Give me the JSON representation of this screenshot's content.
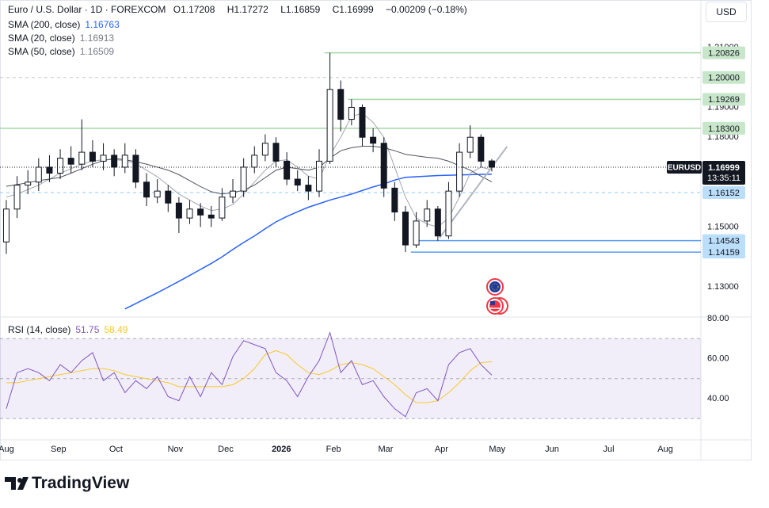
{
  "chart_data": [
    {
      "type": "candlestick",
      "title": "Euro / U.S. Dollar · 1D · FOREXCOM",
      "symbol": "EURUSD",
      "currency": "USD",
      "brand": "TradingView",
      "countdown": "13:35:11",
      "ohlc_labels": [
        "O",
        "H",
        "L",
        "C"
      ],
      "change": "−0.00209 (−0.18%)",
      "x": [
        0,
        6,
        12,
        18,
        24,
        30,
        36,
        42,
        48,
        54,
        60,
        66,
        72,
        78,
        84,
        90,
        96,
        102,
        108,
        114,
        120,
        126,
        132,
        138,
        144,
        150,
        156,
        162,
        168,
        174,
        180,
        186,
        192,
        198,
        204,
        210,
        216,
        222,
        228,
        234,
        240,
        246,
        252,
        258,
        264,
        270
      ],
      "open": [
        1.145,
        1.156,
        1.164,
        1.165,
        1.17,
        1.168,
        1.173,
        1.171,
        1.175,
        1.172,
        1.174,
        1.17,
        1.174,
        1.165,
        1.16,
        1.162,
        1.158,
        1.153,
        1.156,
        1.154,
        1.153,
        1.16,
        1.162,
        1.17,
        1.174,
        1.178,
        1.172,
        1.166,
        1.164,
        1.162,
        1.172,
        1.196,
        1.186,
        1.19,
        1.18,
        1.178,
        1.163,
        1.155,
        1.144,
        1.152,
        1.156,
        1.147,
        1.162,
        1.175,
        1.18,
        1.17208
      ],
      "high": [
        1.159,
        1.167,
        1.169,
        1.173,
        1.174,
        1.176,
        1.177,
        1.186,
        1.179,
        1.178,
        1.176,
        1.178,
        1.176,
        1.168,
        1.166,
        1.164,
        1.16,
        1.159,
        1.158,
        1.157,
        1.163,
        1.166,
        1.173,
        1.177,
        1.181,
        1.18,
        1.175,
        1.169,
        1.167,
        1.176,
        1.2082,
        1.199,
        1.1927,
        1.191,
        1.183,
        1.18,
        1.165,
        1.157,
        1.155,
        1.159,
        1.157,
        1.165,
        1.178,
        1.184,
        1.181,
        1.17272
      ],
      "low": [
        1.141,
        1.153,
        1.161,
        1.162,
        1.165,
        1.166,
        1.168,
        1.169,
        1.17,
        1.169,
        1.167,
        1.168,
        1.163,
        1.157,
        1.158,
        1.155,
        1.148,
        1.151,
        1.15,
        1.15,
        1.152,
        1.158,
        1.16,
        1.168,
        1.172,
        1.17,
        1.164,
        1.162,
        1.159,
        1.16,
        1.171,
        1.182,
        1.184,
        1.177,
        1.175,
        1.16,
        1.152,
        1.1416,
        1.143,
        1.15,
        1.1454,
        1.146,
        1.16,
        1.173,
        1.17,
        1.16859
      ],
      "close": [
        1.156,
        1.164,
        1.165,
        1.17,
        1.168,
        1.173,
        1.171,
        1.175,
        1.172,
        1.174,
        1.17,
        1.174,
        1.165,
        1.16,
        1.162,
        1.158,
        1.153,
        1.156,
        1.154,
        1.153,
        1.16,
        1.162,
        1.17,
        1.174,
        1.178,
        1.172,
        1.166,
        1.164,
        1.162,
        1.172,
        1.196,
        1.186,
        1.19,
        1.18,
        1.178,
        1.163,
        1.155,
        1.144,
        1.152,
        1.156,
        1.147,
        1.162,
        1.175,
        1.18,
        1.172,
        1.16999
      ],
      "up_color": "#ffffff",
      "down_color": "#131722",
      "wick_color": "#131722",
      "series": [
        {
          "name": "SMA (200, close)",
          "color": "#2962ff",
          "values": [
            null,
            null,
            null,
            null,
            null,
            null,
            null,
            null,
            null,
            null,
            null,
            1.1226,
            1.1244,
            1.1262,
            1.128,
            1.1299,
            1.1318,
            1.1338,
            1.1358,
            1.1378,
            1.14,
            1.1425,
            1.1448,
            1.147,
            1.1494,
            1.1517,
            1.1535,
            1.1551,
            1.1566,
            1.1578,
            1.159,
            1.16,
            1.161,
            1.1622,
            1.1634,
            1.1644,
            1.1657,
            1.1666,
            1.1668,
            1.167,
            1.1672,
            1.1673,
            1.1674,
            1.1675,
            1.1676,
            1.16763
          ]
        },
        {
          "name": "SMA (20, close)",
          "color": "#a3a6af",
          "values": [
            1.16,
            1.161,
            1.1625,
            1.164,
            1.166,
            1.168,
            1.1695,
            1.171,
            1.172,
            1.1725,
            1.1725,
            1.1722,
            1.1712,
            1.169,
            1.1668,
            1.164,
            1.161,
            1.159,
            1.157,
            1.1555,
            1.156,
            1.1575,
            1.161,
            1.165,
            1.169,
            1.172,
            1.1725,
            1.17,
            1.167,
            1.166,
            1.174,
            1.18,
            1.187,
            1.188,
            1.185,
            1.18,
            1.17,
            1.16,
            1.153,
            1.151,
            1.15,
            1.153,
            1.16,
            1.168,
            1.17,
            1.16913
          ]
        },
        {
          "name": "SMA (50, close)",
          "color": "#50535e",
          "values": [
            1.1636,
            1.1642,
            1.1648,
            1.1655,
            1.166,
            1.1666,
            1.168,
            1.1695,
            1.171,
            1.1722,
            1.1729,
            1.1725,
            1.1718,
            1.171,
            1.17,
            1.169,
            1.1675,
            1.1655,
            1.1635,
            1.1618,
            1.161,
            1.1615,
            1.1623,
            1.164,
            1.1665,
            1.169,
            1.17,
            1.1695,
            1.169,
            1.17,
            1.173,
            1.1755,
            1.1765,
            1.177,
            1.177,
            1.1765,
            1.1755,
            1.1743,
            1.1738,
            1.1733,
            1.173,
            1.172,
            1.1705,
            1.169,
            1.167,
            1.16509
          ]
        }
      ],
      "levels": [
        {
          "value": 1.20826,
          "label": "1.20826",
          "color": "#a5d6a7",
          "label_color": "#c8e6c9",
          "from": 177
        },
        {
          "value": 1.2,
          "label": "1.20000",
          "color": "#c3c6ce",
          "label_color": "#c8e6c9",
          "dashed": true
        },
        {
          "value": 1.19269,
          "label": "1.19269",
          "color": "#a5d6a7",
          "label_color": "#c8e6c9",
          "from": 190
        },
        {
          "value": 1.183,
          "label": "1.18300",
          "color": "#a5d6a7",
          "label_color": "#c8e6c9",
          "from": -3.5
        },
        {
          "value": 1.16152,
          "label": "1.16152",
          "color": "#90caf9",
          "label_color": "#bbdefb",
          "dashed": true
        },
        {
          "value": 1.14543,
          "label": "1.14543",
          "color": "#5b9cf6",
          "label_color": "#bbdefb",
          "from": 228
        },
        {
          "value": 1.14159,
          "label": "1.14159",
          "color": "#5b9cf6",
          "label_color": "#bbdefb",
          "from": 225
        }
      ],
      "trend_line": {
        "x": [
          241,
          278.5
        ],
        "y": [
          1.1464,
          1.1769
        ],
        "color": "#b2b5be"
      },
      "xlim": [
        -3.5,
        386.3
      ],
      "ylim": [
        1.1199,
        1.2259
      ],
      "yticks": [
        {
          "value": 1.21,
          "label": "1.21000"
        },
        {
          "value": 1.19,
          "label": "1.19000"
        },
        {
          "value": 1.18,
          "label": "1.18000"
        },
        {
          "value": 1.15,
          "label": "1.15000"
        },
        {
          "value": 1.13,
          "label": "1.13000"
        }
      ]
    },
    {
      "type": "line",
      "title": "RSI (14, close)",
      "x": [
        0,
        6,
        12,
        18,
        24,
        30,
        36,
        42,
        48,
        54,
        60,
        66,
        72,
        78,
        84,
        90,
        96,
        102,
        108,
        114,
        120,
        126,
        132,
        138,
        144,
        150,
        156,
        162,
        168,
        174,
        180,
        186,
        192,
        198,
        204,
        210,
        216,
        222,
        228,
        234,
        240,
        246,
        252,
        258,
        264,
        270
      ],
      "series": [
        {
          "name": "RSI",
          "color": "#7e57c2",
          "values": [
            35,
            53,
            55,
            53,
            49,
            57,
            53,
            59,
            63,
            49,
            53,
            43,
            49,
            45,
            51,
            41,
            39,
            51,
            41,
            53,
            47,
            61,
            69,
            67,
            65,
            53,
            49,
            41,
            51,
            59,
            73,
            53,
            59,
            47,
            49,
            41,
            35,
            31,
            43,
            45,
            39,
            57,
            63,
            65,
            57,
            51.75
          ]
        },
        {
          "name": "RSI MA",
          "color": "#f7c928",
          "values": [
            48,
            48,
            49,
            50,
            51,
            52,
            53,
            54,
            55,
            55,
            54,
            52,
            51,
            50,
            49,
            48,
            46,
            46,
            46,
            46,
            46,
            47,
            50,
            55,
            62,
            64,
            62,
            57,
            53,
            52,
            54,
            57,
            58,
            57,
            55,
            51,
            47,
            42,
            38,
            38,
            39,
            43,
            48,
            54,
            58,
            58.49
          ]
        }
      ],
      "band": [
        30,
        70
      ],
      "midline": 50,
      "band_color": "#7e57c2",
      "xlim": [
        -3.5,
        386.3
      ],
      "ylim": [
        22.2,
        80.8
      ],
      "yticks": [
        {
          "value": 80,
          "label": "80.00"
        },
        {
          "value": 60,
          "label": "60.00"
        },
        {
          "value": 40,
          "label": "40.00"
        }
      ],
      "xticks": [
        {
          "value": 0,
          "label": "Aug"
        },
        {
          "value": 29,
          "label": "Sep"
        },
        {
          "value": 61,
          "label": "Oct"
        },
        {
          "value": 94,
          "label": "Nov"
        },
        {
          "value": 122,
          "label": "Dec"
        },
        {
          "value": 153,
          "label": "2026"
        },
        {
          "value": 182,
          "label": "Feb"
        },
        {
          "value": 211,
          "label": "Mar"
        },
        {
          "value": 242,
          "label": "Apr"
        },
        {
          "value": 273,
          "label": "May"
        },
        {
          "value": 303.5,
          "label": "Jun"
        },
        {
          "value": 335,
          "label": "Jul"
        },
        {
          "value": 366.5,
          "label": "Aug"
        }
      ]
    }
  ]
}
